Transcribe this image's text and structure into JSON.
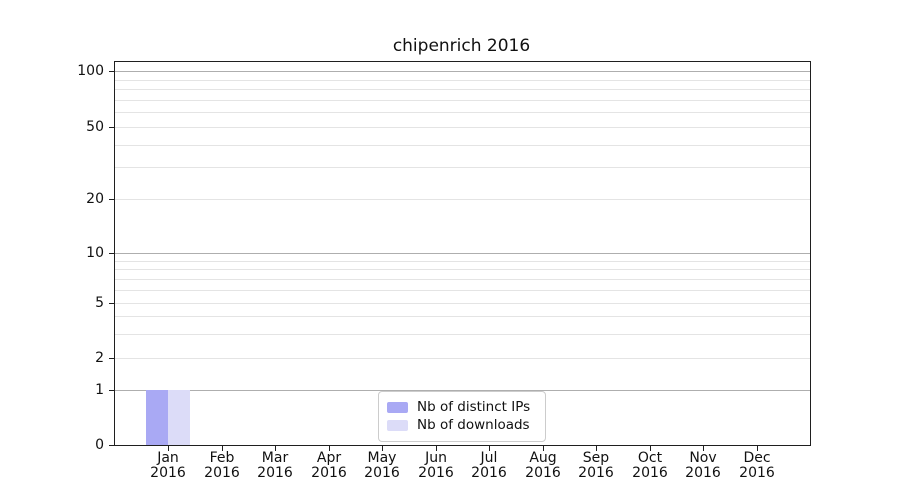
{
  "chart_data": {
    "type": "bar",
    "title": "chipenrich 2016",
    "categories": [
      "Jan",
      "Feb",
      "Mar",
      "Apr",
      "May",
      "Jun",
      "Jul",
      "Aug",
      "Sep",
      "Oct",
      "Nov",
      "Dec"
    ],
    "category_sublabels": [
      "2016",
      "2016",
      "2016",
      "2016",
      "2016",
      "2016",
      "2016",
      "2016",
      "2016",
      "2016",
      "2016",
      "2016"
    ],
    "series": [
      {
        "name": "Nb of distinct IPs",
        "color": "#a9a9f4",
        "values": [
          1,
          0,
          0,
          0,
          0,
          0,
          0,
          0,
          0,
          0,
          0,
          0
        ]
      },
      {
        "name": "Nb of downloads",
        "color": "#dcdcf8",
        "values": [
          1,
          0,
          0,
          0,
          0,
          0,
          0,
          0,
          0,
          0,
          0,
          0
        ]
      }
    ],
    "xlabel": "",
    "ylabel": "",
    "y_ticks": [
      0,
      1,
      2,
      5,
      10,
      20,
      50,
      100
    ],
    "y_major_gridlines": [
      1,
      10,
      100
    ],
    "y_minor_gridlines": [
      2,
      3,
      4,
      5,
      6,
      7,
      8,
      9,
      20,
      30,
      40,
      50,
      60,
      70,
      80,
      90
    ],
    "y_scale": "log above 1, linear 0-1",
    "ylim": [
      0,
      112
    ],
    "grid": "horizontal major+minor",
    "legend": {
      "position": "lower center",
      "entries": [
        "Nb of distinct IPs",
        "Nb of downloads"
      ]
    }
  }
}
